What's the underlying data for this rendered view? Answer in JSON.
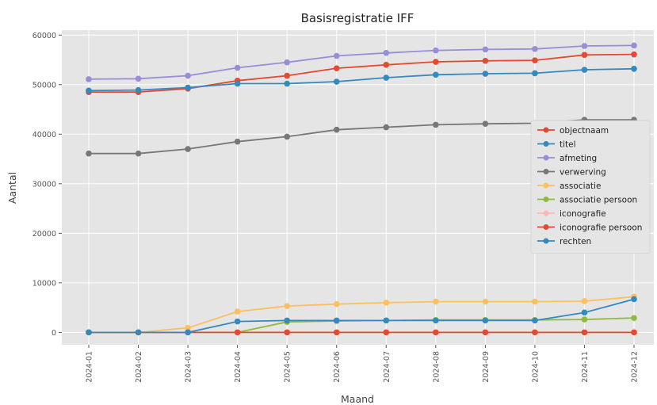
{
  "chart_data": {
    "type": "line",
    "title": "Basisregistratie IFF",
    "xlabel": "Maand",
    "ylabel": "Aantal",
    "ylim": [
      -2500,
      61000
    ],
    "yticks": [
      0,
      10000,
      20000,
      30000,
      40000,
      50000,
      60000
    ],
    "grid": true,
    "legend_position": "center-right",
    "categories": [
      "2024-01",
      "2024-02",
      "2024-03",
      "2024-04",
      "2024-05",
      "2024-06",
      "2024-07",
      "2024-08",
      "2024-09",
      "2024-10",
      "2024-11",
      "2024-12"
    ],
    "series": [
      {
        "name": "objectnaam",
        "color": "#e24a33",
        "values": [
          48500,
          48500,
          49200,
          50800,
          51800,
          53300,
          54000,
          54600,
          54800,
          54900,
          56000,
          56100
        ]
      },
      {
        "name": "titel",
        "color": "#348abd",
        "values": [
          48800,
          48900,
          49400,
          50200,
          50200,
          50600,
          51400,
          52000,
          52200,
          52300,
          53000,
          53200
        ]
      },
      {
        "name": "afmeting",
        "color": "#988ed5",
        "values": [
          51100,
          51200,
          51800,
          53400,
          54500,
          55800,
          56400,
          56900,
          57100,
          57200,
          57800,
          57900
        ]
      },
      {
        "name": "verwerving",
        "color": "#777777",
        "values": [
          36100,
          36100,
          37000,
          38500,
          39500,
          40900,
          41400,
          41900,
          42100,
          42200,
          42900,
          42900
        ]
      },
      {
        "name": "associatie",
        "color": "#fbc15e",
        "values": [
          0,
          0,
          900,
          4200,
          5300,
          5700,
          6000,
          6200,
          6200,
          6200,
          6300,
          7200
        ]
      },
      {
        "name": "associatie persoon",
        "color": "#8eba42",
        "values": [
          0,
          0,
          0,
          0,
          2100,
          2300,
          2400,
          2500,
          2500,
          2500,
          2600,
          2900
        ]
      },
      {
        "name": "iconografie",
        "color": "#ffb5b8",
        "values": [
          0,
          0,
          0,
          0,
          0,
          0,
          0,
          0,
          0,
          0,
          0,
          0
        ]
      },
      {
        "name": "iconografie persoon",
        "color": "#e24a33",
        "values": [
          0,
          0,
          0,
          0,
          0,
          0,
          0,
          0,
          0,
          0,
          0,
          0
        ]
      },
      {
        "name": "rechten",
        "color": "#348abd",
        "values": [
          0,
          0,
          0,
          2200,
          2400,
          2400,
          2400,
          2400,
          2400,
          2400,
          4000,
          6700
        ]
      }
    ]
  }
}
